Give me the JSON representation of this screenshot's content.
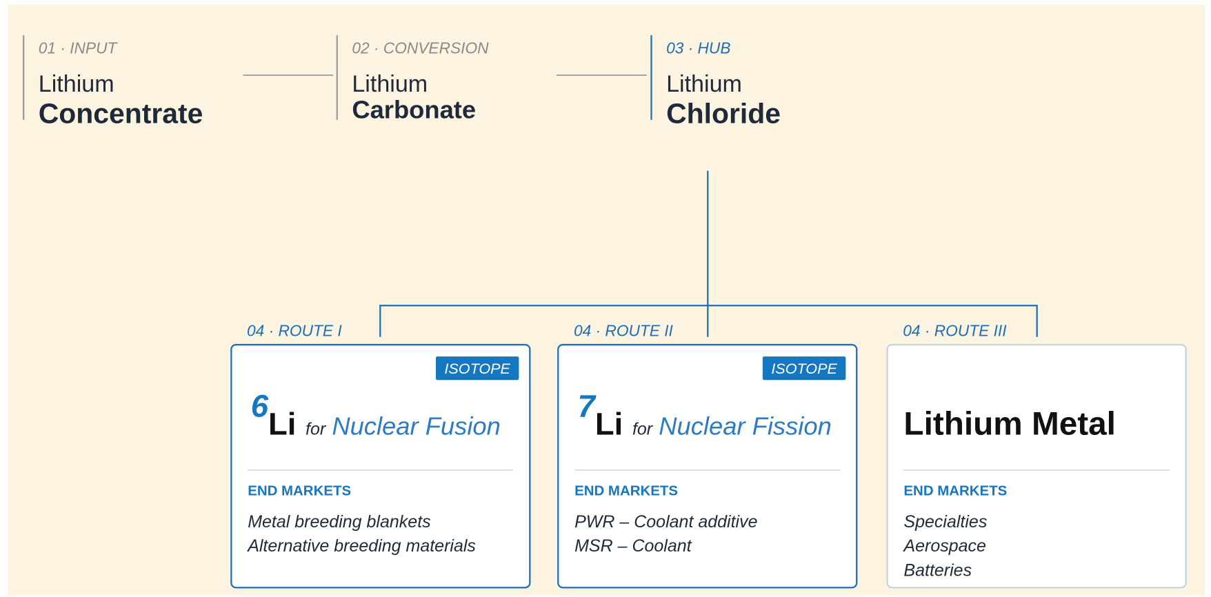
{
  "stages": [
    {
      "label": "01 · INPUT",
      "line1": "Lithium",
      "line2": "Concentrate"
    },
    {
      "label": "02 · CONVERSION",
      "line1": "Lithium",
      "line2": "Carbonate"
    },
    {
      "label": "03 · HUB",
      "line1": "Lithium",
      "line2": "Chloride"
    }
  ],
  "routes": [
    {
      "label": "04 · ROUTE I",
      "tag": "ISOTOPE",
      "mass": "6",
      "symbol": "Li",
      "for": "for",
      "application": "Nuclear Fusion",
      "heading": "END MARKETS",
      "items": [
        "Metal breeding blankets",
        "Alternative breeding materials"
      ]
    },
    {
      "label": "04 · ROUTE II",
      "tag": "ISOTOPE",
      "mass": "7",
      "symbol": "Li",
      "for": "for",
      "application": "Nuclear Fission",
      "heading": "END MARKETS",
      "items": [
        "PWR – Coolant additive",
        "MSR – Coolant"
      ]
    },
    {
      "label": "04 · ROUTE III",
      "title": "Lithium Metal",
      "heading": "END MARKETS",
      "items": [
        "Specialties",
        "Aerospace",
        "Batteries"
      ]
    }
  ]
}
